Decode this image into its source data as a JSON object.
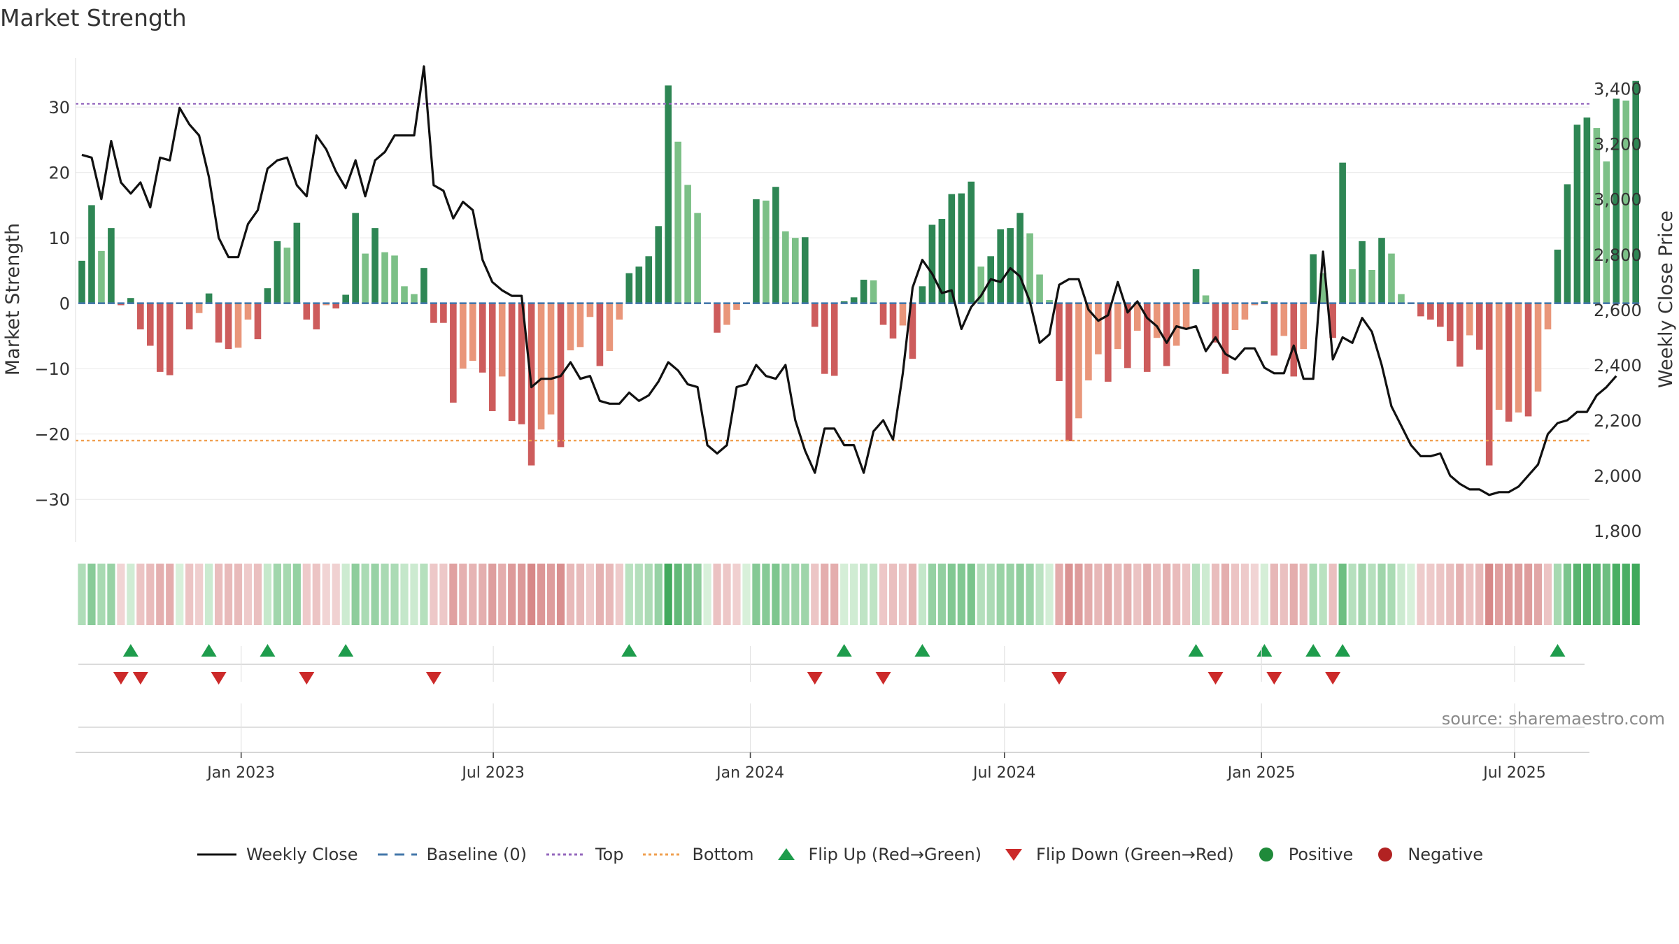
{
  "chart_data": {
    "type": "bar",
    "title": "Market Strength",
    "ylabel": "Market Strength",
    "y2label": "Weekly Close Price",
    "ylim": [
      -36.5,
      37.5
    ],
    "y2lim": [
      1760,
      3510
    ],
    "yticks": [
      30,
      20,
      10,
      0,
      -10,
      -20,
      -30
    ],
    "ytick_labels": [
      "30",
      "20",
      "10",
      "0",
      "−10",
      "−20",
      "−30"
    ],
    "y2ticks": [
      3400,
      3200,
      3000,
      2800,
      2600,
      2400,
      2200,
      2000,
      1800
    ],
    "y2tick_labels": [
      "3,400",
      "3,200",
      "3,000",
      "2,800",
      "2,600",
      "2,400",
      "2,200",
      "2,000",
      "1,800"
    ],
    "top_level": 30.5,
    "bottom_level": -21,
    "x_start": "2022-09-11",
    "x_labels": [
      {
        "label": "Jan 2023",
        "week": 16.3
      },
      {
        "label": "Jul 2023",
        "week": 42.1
      },
      {
        "label": "Jan 2024",
        "week": 68.4
      },
      {
        "label": "Jul 2024",
        "week": 94.4
      },
      {
        "label": "Jan 2025",
        "week": 120.7
      },
      {
        "label": "Jul 2025",
        "week": 146.6
      }
    ],
    "strength": [
      6.5,
      15,
      8,
      11.5,
      -0.3,
      0.8,
      -4,
      -6.5,
      -10.5,
      -11,
      0,
      -4,
      -1.5,
      1.5,
      -6,
      -7,
      -6.8,
      -2.5,
      -5.5,
      2.3,
      9.5,
      8.5,
      12.3,
      -2.5,
      -4,
      -0.3,
      -0.8,
      1.3,
      13.8,
      7.6,
      11.5,
      7.8,
      7.3,
      2.6,
      1.4,
      5.4,
      -3,
      -3,
      -15.2,
      -10,
      -8.8,
      -10.6,
      -16.5,
      -11.2,
      -18,
      -18.5,
      -24.8,
      -19.3,
      -17,
      -22,
      -7.2,
      -6.7,
      -2.1,
      -9.6,
      -7.3,
      -2.5,
      4.6,
      5.6,
      7.2,
      11.8,
      33.3,
      24.7,
      18.1,
      13.8,
      0,
      -4.5,
      -3.3,
      -1,
      0,
      15.9,
      15.7,
      17.8,
      11,
      10,
      10.1,
      -3.6,
      -10.8,
      -11.1,
      0.3,
      0.9,
      3.6,
      3.5,
      -3.3,
      -5.4,
      -3.4,
      -8.5,
      2.6,
      12,
      12.9,
      16.7,
      16.8,
      18.6,
      5.6,
      7.2,
      11.3,
      11.5,
      13.8,
      10.7,
      4.4,
      0.5,
      -11.9,
      -21.1,
      -17.6,
      -11.8,
      -7.8,
      -12,
      -7,
      -9.9,
      -4.2,
      -10.5,
      -5.3,
      -9.6,
      -6.5,
      -4,
      5.2,
      1.2,
      -6,
      -10.8,
      -4.1,
      -2.5,
      -0.3,
      0.3,
      -8,
      -5,
      -11.2,
      -7,
      7.5,
      4.6,
      -5.3,
      21.5,
      5.2,
      9.5,
      5.1,
      10,
      7.6,
      1.4,
      0,
      -2,
      -2.5,
      -3.6,
      -5.8,
      -9.7,
      -4.9,
      -7.1,
      -24.8,
      -16.3,
      -18.1,
      -16.7,
      -17.3,
      -13.5,
      -4,
      8.2,
      18.2,
      27.3,
      28.4,
      26.8,
      21.7,
      31.3,
      31,
      34
    ],
    "close": [
      3160,
      3150,
      3000,
      3210,
      3060,
      3020,
      3060,
      2970,
      3150,
      3140,
      3330,
      3270,
      3230,
      3080,
      2860,
      2790,
      2790,
      2910,
      2960,
      3110,
      3140,
      3150,
      3050,
      3010,
      3230,
      3180,
      3100,
      3040,
      3140,
      3010,
      3140,
      3170,
      3230,
      3230,
      3230,
      3480,
      3050,
      3030,
      2930,
      2990,
      2960,
      2780,
      2700,
      2670,
      2650,
      2650,
      2320,
      2350,
      2350,
      2360,
      2410,
      2350,
      2360,
      2270,
      2260,
      2260,
      2300,
      2270,
      2290,
      2340,
      2410,
      2380,
      2330,
      2320,
      2110,
      2080,
      2110,
      2320,
      2330,
      2400,
      2360,
      2350,
      2400,
      2200,
      2090,
      2010,
      2170,
      2170,
      2110,
      2110,
      2010,
      2160,
      2200,
      2130,
      2370,
      2680,
      2780,
      2730,
      2660,
      2670,
      2530,
      2610,
      2650,
      2710,
      2700,
      2750,
      2720,
      2630,
      2480,
      2510,
      2690,
      2710,
      2710,
      2600,
      2560,
      2580,
      2700,
      2590,
      2630,
      2570,
      2540,
      2480,
      2540,
      2530,
      2540,
      2450,
      2500,
      2440,
      2420,
      2460,
      2460,
      2390,
      2370,
      2370,
      2470,
      2350,
      2350,
      2810,
      2420,
      2500,
      2480,
      2570,
      2520,
      2400,
      2250,
      2180,
      2110,
      2070,
      2070,
      2080,
      2000,
      1970,
      1950,
      1950,
      1930,
      1940,
      1940,
      1960,
      2000,
      2040,
      2150,
      2190,
      2200,
      2230,
      2230,
      2290,
      2320,
      2360
    ],
    "legend": [
      "Weekly Close",
      "Baseline (0)",
      "Top",
      "Bottom",
      "Flip Up (Red→Green)",
      "Flip Down (Green→Red)",
      "Positive",
      "Negative"
    ],
    "colors": {
      "pos_dark": "#2e8654",
      "pos_light": "#7cc087",
      "neg_dark": "#cd5c5c",
      "neg_light": "#e9967a",
      "close_line": "#111111",
      "baseline": "#4477aa",
      "top": "#9467bd",
      "bottom": "#f0a050",
      "flip_up": "#1e9c4c",
      "flip_down": "#cc2a2a",
      "positive": "#1f8a3a",
      "negative": "#b22222"
    }
  },
  "source": "source: sharemaestro.com"
}
